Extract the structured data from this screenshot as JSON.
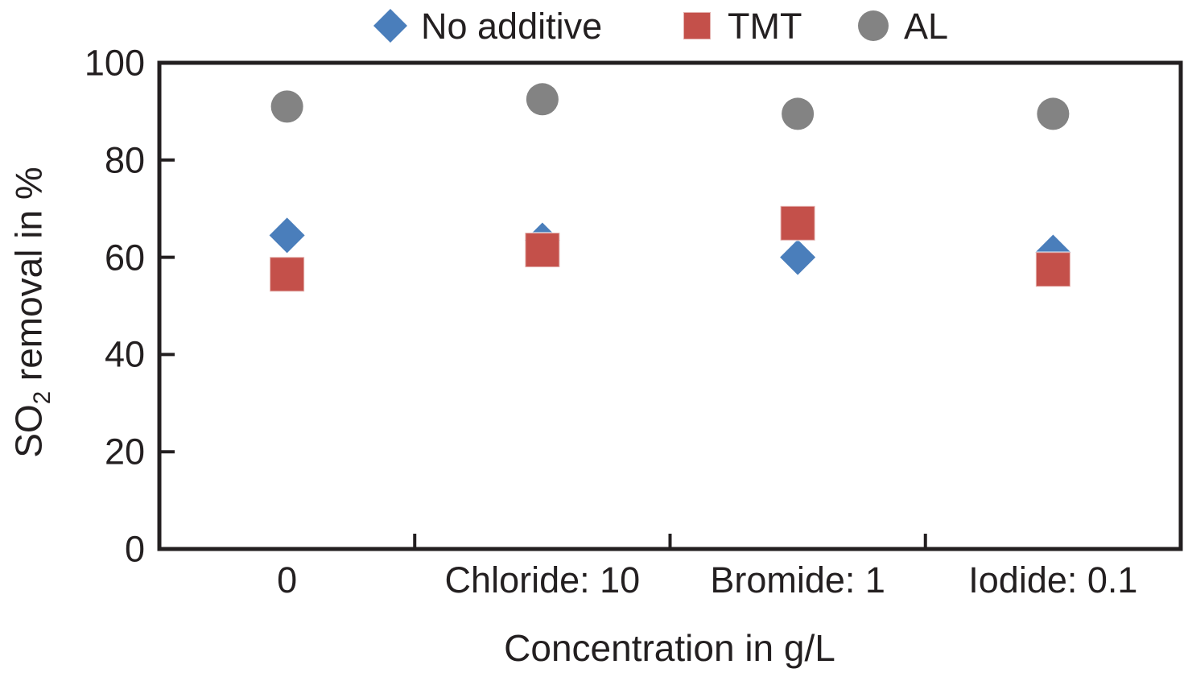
{
  "chart_data": {
    "type": "scatter",
    "title": "",
    "categories": [
      "0",
      "Chloride: 10",
      "Bromide: 1",
      "Iodide: 0.1"
    ],
    "series": [
      {
        "name": "No additive",
        "marker": "diamond",
        "color": "#4A7EBB",
        "values": [
          64.5,
          63.5,
          60,
          61
        ]
      },
      {
        "name": "TMT",
        "marker": "square",
        "color": "#C4504A",
        "values": [
          56.5,
          61.5,
          67,
          57.5
        ]
      },
      {
        "name": "AL",
        "marker": "circle",
        "color": "#838383",
        "values": [
          91,
          92.5,
          89.5,
          89.5
        ]
      }
    ],
    "xlabel": "Concentration in g/L",
    "ylabel": "SO₂ removal in %",
    "ylabel_parts": {
      "prefix": "SO",
      "sub": "2",
      "suffix": " removal in %"
    },
    "ylim": [
      0,
      100
    ],
    "yticks": [
      0,
      20,
      40,
      60,
      80,
      100
    ],
    "grid": false,
    "legend_position": "top",
    "axis_color": "#231f20",
    "background": "#ffffff"
  }
}
